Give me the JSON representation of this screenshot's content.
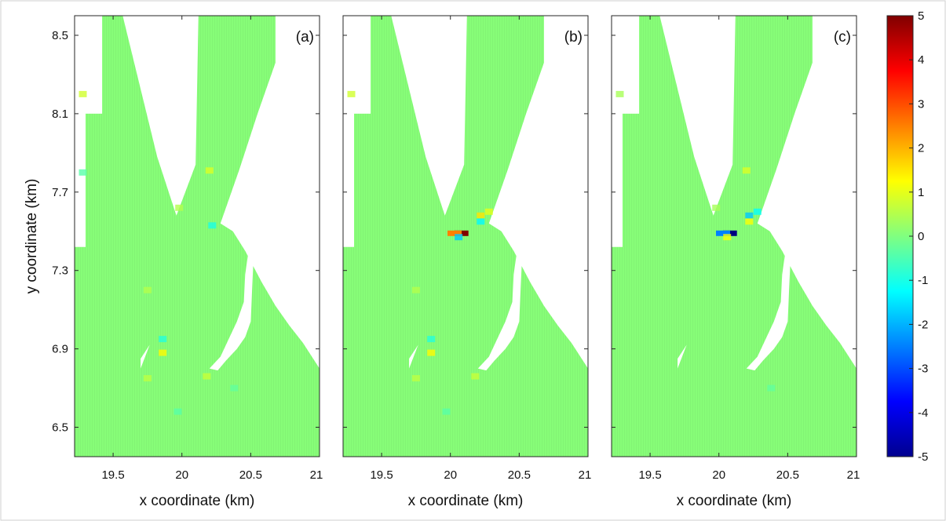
{
  "chart_data": [
    {
      "type": "heatmap",
      "panel_label": "(a)",
      "xlabel": "x coordinate (km)",
      "ylabel": "y coordinate (km)",
      "xlim": [
        19.22,
        21.0
      ],
      "ylim": [
        6.35,
        8.6
      ],
      "xticks": [
        19.5,
        20,
        20.5,
        21
      ],
      "xtick_labels": [
        "19.5",
        "20",
        "20.5",
        "21"
      ],
      "yticks": [
        6.5,
        6.9,
        7.3,
        7.7,
        8.1,
        8.5
      ],
      "ytick_labels": [
        "6.5",
        "6.9",
        "7.3",
        "7.7",
        "8.1",
        "8.5"
      ],
      "background_value": 0,
      "hotspots": [
        {
          "x": 20.2,
          "y": 7.81,
          "value": 0.9
        },
        {
          "x": 20.22,
          "y": 7.53,
          "value": -1.0
        },
        {
          "x": 19.98,
          "y": 7.62,
          "value": 0.5
        },
        {
          "x": 19.86,
          "y": 6.88,
          "value": 1.3
        },
        {
          "x": 19.86,
          "y": 6.95,
          "value": -0.9
        },
        {
          "x": 19.75,
          "y": 7.2,
          "value": 0.5
        },
        {
          "x": 20.18,
          "y": 6.76,
          "value": 0.7
        },
        {
          "x": 19.75,
          "y": 6.75,
          "value": 0.6
        },
        {
          "x": 19.28,
          "y": 8.2,
          "value": 0.8
        },
        {
          "x": 19.28,
          "y": 7.8,
          "value": -0.4
        },
        {
          "x": 20.38,
          "y": 6.7,
          "value": -0.3
        },
        {
          "x": 19.97,
          "y": 6.58,
          "value": -0.4
        }
      ]
    },
    {
      "type": "heatmap",
      "panel_label": "(b)",
      "xlabel": "x coordinate (km)",
      "ylabel": "",
      "xlim": [
        19.22,
        21.0
      ],
      "ylim": [
        6.35,
        8.6
      ],
      "xticks": [
        19.5,
        20,
        20.5,
        21
      ],
      "xtick_labels": [
        "19.5",
        "20",
        "20.5",
        "21"
      ],
      "yticks": [
        6.5,
        6.9,
        7.3,
        7.7,
        8.1,
        8.5
      ],
      "background_value": 0,
      "hotspots": [
        {
          "x": 20.08,
          "y": 7.49,
          "value": 5.0
        },
        {
          "x": 20.03,
          "y": 7.49,
          "value": 2.5
        },
        {
          "x": 20.06,
          "y": 7.47,
          "value": -1.8
        },
        {
          "x": 20.22,
          "y": 7.58,
          "value": 1.5
        },
        {
          "x": 20.28,
          "y": 7.6,
          "value": 1.0
        },
        {
          "x": 20.22,
          "y": 7.55,
          "value": -1.3
        },
        {
          "x": 19.86,
          "y": 6.88,
          "value": 1.3
        },
        {
          "x": 19.86,
          "y": 6.95,
          "value": -0.9
        },
        {
          "x": 19.75,
          "y": 7.2,
          "value": 0.5
        },
        {
          "x": 20.18,
          "y": 6.76,
          "value": 0.7
        },
        {
          "x": 19.75,
          "y": 6.75,
          "value": 0.6
        },
        {
          "x": 19.28,
          "y": 8.2,
          "value": 0.8
        },
        {
          "x": 19.97,
          "y": 6.58,
          "value": -0.4
        }
      ]
    },
    {
      "type": "heatmap",
      "panel_label": "(c)",
      "xlabel": "x coordinate (km)",
      "ylabel": "",
      "xlim": [
        19.22,
        21.0
      ],
      "ylim": [
        6.35,
        8.6
      ],
      "xticks": [
        19.5,
        20,
        20.5,
        21
      ],
      "xtick_labels": [
        "19.5",
        "20",
        "20.5",
        "21"
      ],
      "yticks": [
        6.5,
        6.9,
        7.3,
        7.7,
        8.1,
        8.5
      ],
      "background_value": 0,
      "hotspots": [
        {
          "x": 20.08,
          "y": 7.49,
          "value": -5.0
        },
        {
          "x": 20.03,
          "y": 7.49,
          "value": -2.5
        },
        {
          "x": 20.06,
          "y": 7.47,
          "value": 1.2
        },
        {
          "x": 20.22,
          "y": 7.58,
          "value": -1.8
        },
        {
          "x": 20.28,
          "y": 7.6,
          "value": -1.2
        },
        {
          "x": 20.22,
          "y": 7.55,
          "value": 1.2
        },
        {
          "x": 20.2,
          "y": 7.81,
          "value": 0.9
        },
        {
          "x": 19.98,
          "y": 7.62,
          "value": 0.4
        },
        {
          "x": 19.28,
          "y": 8.2,
          "value": 0.4
        },
        {
          "x": 20.38,
          "y": 6.7,
          "value": -0.3
        }
      ]
    }
  ],
  "colorbar": {
    "range": [
      -5,
      5
    ],
    "ticks": [
      5,
      4,
      3,
      2,
      1,
      0,
      -1,
      -2,
      -3,
      -4,
      -5
    ],
    "tick_labels": [
      "5",
      "4",
      "3",
      "2",
      "1",
      "0",
      "-1",
      "-2",
      "-3",
      "-4",
      "-5"
    ],
    "colormap": "jet"
  },
  "colors": {
    "background": "#ffffff",
    "axes": "#262626",
    "mask": "#ffffff"
  }
}
